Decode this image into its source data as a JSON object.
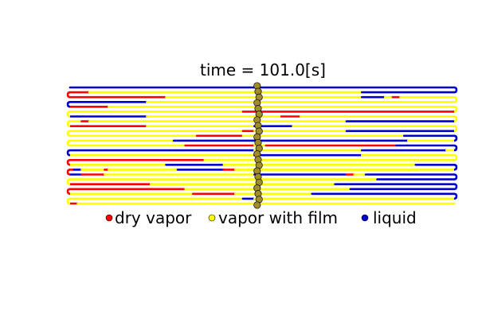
{
  "title": "time = 101.0[s]",
  "colors": {
    "dry_vapor": "#ff0000",
    "vapor_with_film": "#ffff00",
    "liquid": "#0000cc",
    "probe": "#a08c2a",
    "outline": "#000000"
  },
  "legend": [
    {
      "label": "dry vapor",
      "color_key": "dry_vapor"
    },
    {
      "label": "vapor with film",
      "color_key": "vapor_with_film"
    },
    {
      "label": "liquid",
      "color_key": "liquid"
    }
  ],
  "chart_data": {
    "type": "diagram",
    "rows": [
      [
        [
          "L",
          0,
          0.48
        ],
        [
          "L",
          0.48,
          1.0
        ]
      ],
      [
        [
          "R",
          0,
          0.05
        ],
        [
          "V",
          0.05,
          0.48
        ],
        [
          "V",
          0.48,
          0.76
        ],
        [
          "L",
          0.76,
          1.0
        ]
      ],
      [
        [
          "R",
          0,
          0.25
        ],
        [
          "V",
          0.25,
          0.48
        ],
        [
          "V",
          0.48,
          0.76
        ],
        [
          "L",
          0.76,
          0.82
        ],
        [
          "V",
          0.82,
          0.84
        ],
        [
          "R",
          0.84,
          0.86
        ],
        [
          "V",
          0.86,
          1.0
        ]
      ],
      [
        [
          "L",
          0,
          0.2
        ],
        [
          "V",
          0.2,
          0.48
        ],
        [
          "V",
          0.48,
          1.0
        ]
      ],
      [
        [
          "R",
          0,
          0.1
        ],
        [
          "V",
          0.1,
          0.48
        ],
        [
          "V",
          0.48,
          1.0
        ]
      ],
      [
        [
          "V",
          0,
          0.45
        ],
        [
          "R",
          0.45,
          0.48
        ],
        [
          "R",
          0.48,
          1.0
        ]
      ],
      [
        [
          "L",
          0,
          0.2
        ],
        [
          "V",
          0.2,
          0.48
        ],
        [
          "V",
          0.48,
          0.55
        ],
        [
          "R",
          0.55,
          0.6
        ],
        [
          "V",
          0.6,
          1.0
        ]
      ],
      [
        [
          "V",
          0,
          0.03
        ],
        [
          "R",
          0.03,
          0.05
        ],
        [
          "V",
          0.05,
          0.48
        ],
        [
          "V",
          0.48,
          0.72
        ],
        [
          "L",
          0.72,
          1.0
        ]
      ],
      [
        [
          "R",
          0,
          0.2
        ],
        [
          "V",
          0.2,
          0.48
        ],
        [
          "L",
          0.48,
          0.58
        ],
        [
          "V",
          0.58,
          1.0
        ]
      ],
      [
        [
          "V",
          0,
          0.45
        ],
        [
          "R",
          0.45,
          0.48
        ],
        [
          "V",
          0.48,
          0.72
        ],
        [
          "L",
          0.72,
          1.0
        ]
      ],
      [
        [
          "V",
          0,
          0.33
        ],
        [
          "R",
          0.33,
          0.45
        ],
        [
          "V",
          0.45,
          0.48
        ],
        [
          "V",
          0.48,
          0.87
        ],
        [
          "L",
          0.87,
          1.0
        ]
      ],
      [
        [
          "V",
          0,
          0.27
        ],
        [
          "L",
          0.27,
          0.48
        ],
        [
          "L",
          0.48,
          0.88
        ],
        [
          "V",
          0.88,
          1.0
        ]
      ],
      [
        [
          "V",
          0,
          0.3
        ],
        [
          "R",
          0.3,
          0.48
        ],
        [
          "V",
          0.48,
          0.51
        ],
        [
          "R",
          0.51,
          0.85
        ],
        [
          "L",
          0.85,
          1.0
        ]
      ],
      [
        [
          "L",
          0,
          0.48
        ],
        [
          "V",
          0.48,
          0.76
        ],
        [
          "L",
          0.76,
          0.98
        ],
        [
          "V",
          0.98,
          1.0
        ]
      ],
      [
        [
          "V",
          0,
          0.48
        ],
        [
          "L",
          0.48,
          0.76
        ],
        [
          "V",
          0.76,
          1.0
        ]
      ],
      [
        [
          "R",
          0,
          0.35
        ],
        [
          "V",
          0.35,
          0.48
        ],
        [
          "V",
          0.48,
          1.0
        ]
      ],
      [
        [
          "V",
          0,
          0.25
        ],
        [
          "L",
          0.25,
          0.4
        ],
        [
          "V",
          0.4,
          0.48
        ],
        [
          "V",
          0.48,
          0.9
        ],
        [
          "L",
          0.9,
          1.0
        ]
      ],
      [
        [
          "R",
          0,
          0.01
        ],
        [
          "L",
          0.01,
          0.03
        ],
        [
          "V",
          0.03,
          0.06
        ],
        [
          "V",
          0.06,
          0.09
        ],
        [
          "R",
          0.09,
          0.1
        ],
        [
          "V",
          0.1,
          0.28
        ],
        [
          "L",
          0.28,
          0.4
        ],
        [
          "R",
          0.4,
          0.43
        ],
        [
          "V",
          0.43,
          0.48
        ],
        [
          "V",
          0.48,
          1.0
        ]
      ],
      [
        [
          "L",
          0,
          0.03
        ],
        [
          "R",
          0.03,
          0.09
        ],
        [
          "V",
          0.09,
          0.48
        ],
        [
          "L",
          0.48,
          0.72
        ],
        [
          "R",
          0.72,
          0.74
        ],
        [
          "V",
          0.74,
          0.77
        ],
        [
          "L",
          0.77,
          1.0
        ]
      ],
      [
        [
          "V",
          0,
          0.48
        ],
        [
          "V",
          0.48,
          0.8
        ],
        [
          "L",
          0.8,
          1.0
        ]
      ],
      [
        [
          "R",
          0,
          0.21
        ],
        [
          "V",
          0.21,
          0.48
        ],
        [
          "V",
          0.48,
          0.69
        ],
        [
          "L",
          0.69,
          1.0
        ]
      ],
      [
        [
          "R",
          0,
          0.3
        ],
        [
          "V",
          0.3,
          0.48
        ],
        [
          "V",
          0.48,
          0.73
        ],
        [
          "L",
          0.73,
          1.0
        ]
      ],
      [
        [
          "V",
          0,
          0.32
        ],
        [
          "R",
          0.32,
          0.43
        ],
        [
          "V",
          0.43,
          0.48
        ],
        [
          "V",
          0.48,
          0.63
        ],
        [
          "L",
          0.63,
          1.0
        ]
      ],
      [
        [
          "V",
          0,
          0.45
        ],
        [
          "L",
          0.45,
          0.48
        ],
        [
          "V",
          0.48,
          1.0
        ]
      ],
      [
        [
          "R",
          0,
          0.02
        ],
        [
          "V",
          0.02,
          0.48
        ],
        [
          "V",
          0.48,
          1.0
        ]
      ]
    ],
    "probe_count": 22
  }
}
